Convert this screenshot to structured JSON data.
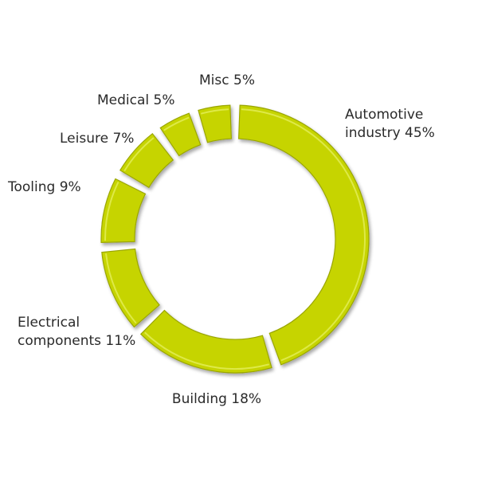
{
  "chart_data": {
    "type": "pie",
    "title": "",
    "categories": [
      "Automotive industry",
      "Building",
      "Electrical components",
      "Tooling",
      "Leisure",
      "Medical",
      "Misc"
    ],
    "values": [
      45,
      18,
      11,
      9,
      7,
      5,
      5
    ],
    "unit": "%",
    "labels": [
      {
        "category": "Automotive industry",
        "lines": [
          "Automotive",
          "industry 45%"
        ]
      },
      {
        "category": "Building",
        "lines": [
          "Building 18%"
        ]
      },
      {
        "category": "Electrical components",
        "lines": [
          "Electrical",
          "components 11%"
        ]
      },
      {
        "category": "Tooling",
        "lines": [
          "Tooling 9%"
        ]
      },
      {
        "category": "Leisure",
        "lines": [
          "Leisure 7%"
        ]
      },
      {
        "category": "Medical",
        "lines": [
          "Medical 5%"
        ]
      },
      {
        "category": "Misc",
        "lines": [
          "Misc 5%"
        ]
      }
    ],
    "legend": "none",
    "colors": {
      "slice": "#c6d400",
      "slice_highlight": "#e4ee5a",
      "slice_shadow": "#9aa600",
      "label": "#2a2a2a"
    }
  }
}
